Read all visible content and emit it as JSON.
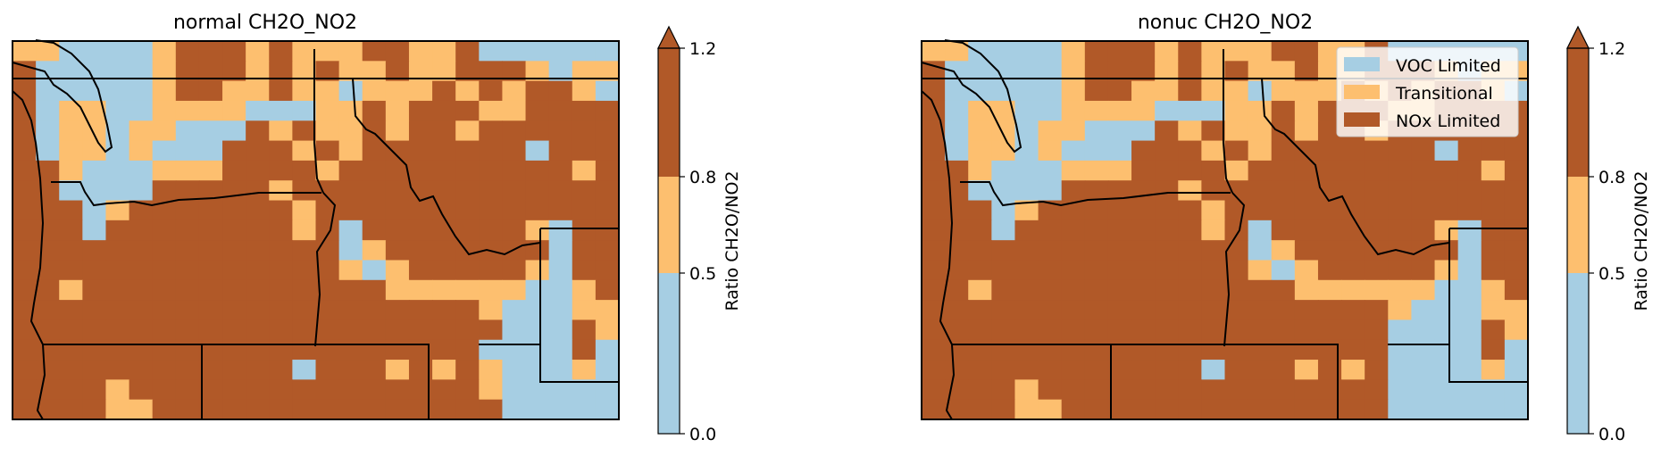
{
  "colors": {
    "voc": "#a6cee3",
    "transitional": "#fdbf6f",
    "nox": "#b15928",
    "border": "#000000"
  },
  "legend": {
    "items": [
      {
        "label": "VOC Limited",
        "color": "#a6cee3"
      },
      {
        "label": "Transitional",
        "color": "#fdbf6f"
      },
      {
        "label": "NOx Limited",
        "color": "#b15928"
      }
    ]
  },
  "colorbar": {
    "label": "Ratio CH2O/NO2",
    "ticks": [
      "0.0",
      "0.5",
      "0.8",
      "1.2"
    ],
    "bins": [
      {
        "from": 0.0,
        "to": 0.5,
        "color": "#a6cee3"
      },
      {
        "from": 0.5,
        "to": 0.8,
        "color": "#fdbf6f"
      },
      {
        "from": 0.8,
        "to": 1.2,
        "color": "#b15928"
      }
    ],
    "extend": "max"
  },
  "chart_data": [
    {
      "type": "heatmap",
      "title": "normal CH2O_NO2",
      "categories_legend": [
        "VOC Limited",
        "Transitional",
        "NOx Limited"
      ],
      "grid": [
        "TTVVVVTNNNTNTTTNNTTNVVVVVV",
        "NVVVVVTNNNTNTNTTNTTNNNTVTT",
        "NVVVVVTNNTTNTTVTTTNTNTNNTV",
        "NVTTVVTTTTVVVTTNTNNNTTNNNN",
        "NVTTVTTVVVNTNTTNTNNTNNNNNN",
        "NVTTVTVVVNNNTNTNNNNNNNVNNN",
        "NNTVVVTTTNNNNTNNNNNNNNNNTN",
        "NNVVVVNNNNNTNNNNNNNNNNNNNN",
        "NNNVTNNNNNNNTNNNNNNNNNNNNN",
        "NNNVNNNNNNNNTNVNNNNNNNTVNN",
        "NNNNNNNNNNNNNNVTNNNNNNNVNN",
        "NNNNNNNNNNNNNNTVTNNNNNTVNN",
        "NNTNNNNNNNNNNNNNTTTTTTVVTN",
        "NNNNNNNNNNNNNNNNNNNNTVVVTT",
        "NNNNNNNNNNNNNNNNNNNNNVVVNT",
        "NNNNNNNNNNNNNNNNNNNNVVVVNV",
        "NNNNNNNNNNNNVNNNTNTNTVVVTV",
        "NNNNTNNNNNNNNNNNNNNNTVVVVV",
        "NNNNTTNNNNNNNNNNNNNNNVVVVV"
      ]
    },
    {
      "type": "heatmap",
      "title": "nonuc CH2O_NO2",
      "categories_legend": [
        "VOC Limited",
        "Transitional",
        "NOx Limited"
      ],
      "grid": [
        "TTVVVVTNNNTNTTTNNTTNVVVVVV",
        "NVVVVVTNNNTNTNTTNTTNNNTVTT",
        "NVVVVVTNNTTNTTVTTTNTNTNNTV",
        "NVTTVVTTTTVVVTTNTNNNTTNNNN",
        "NVTTVTTVVVNTNTTNTNNTNNNNNN",
        "NVTTVTVVVNNNTNTNNNNNNNVNNN",
        "NNTVVVTTTNNNNTNNNNNNNNNNTN",
        "NNVVVVNNNNNTNNNNNNNNNNNNNN",
        "NNNVTNNNNNNNTNNNNNNNNNNNNN",
        "NNNVNNNNNNNNTNVNNNNNNNTVNN",
        "NNNNNNNNNNNNNNVTNNNNNNNVNN",
        "NNNNNNNNNNNNNNTVTNNNNNTVNN",
        "NNTNNNNNNNNNNNNNTTTTTTVVTN",
        "NNNNNNNNNNNNNNNNNNNNTVVVTT",
        "NNNNNNNNNNNNNNNNNNNNVVVVNT",
        "NNNNNNNNNNNNNNNNNNNNVVVVNV",
        "NNNNNNNNNNNNVNNNTNTNVVVVTV",
        "NNNNTNNNNNNNNNNNNNNNVVVVVV",
        "NNNNTTNNNNNNNNNNNNNNVVVVVV"
      ]
    }
  ]
}
